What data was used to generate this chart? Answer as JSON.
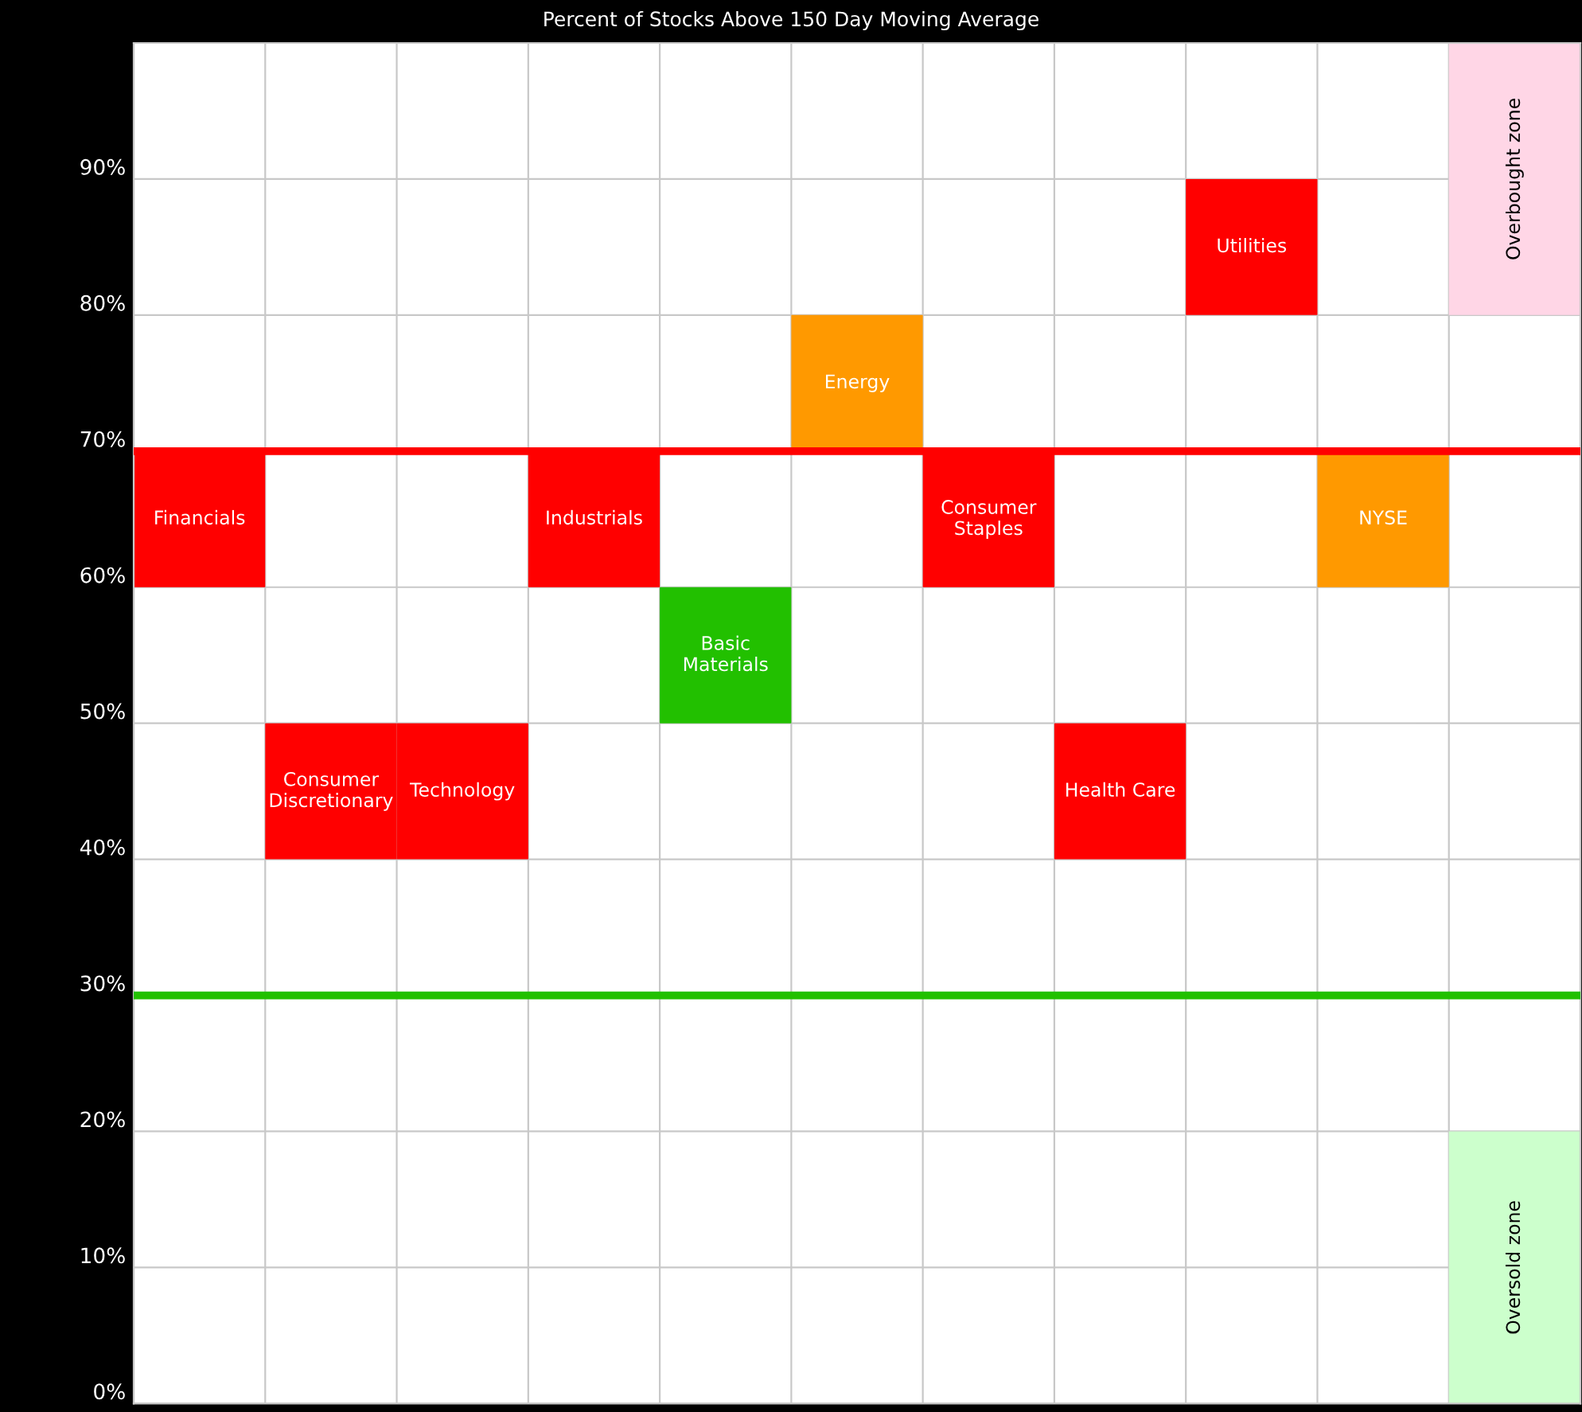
{
  "chart_data": {
    "type": "bar",
    "title": "Percent of Stocks Above 150 Day Moving Average",
    "categories": [
      null,
      null,
      null,
      null,
      null,
      null,
      null,
      null,
      null,
      null,
      null
    ],
    "series": [
      {
        "base": [
          60,
          40,
          40,
          60,
          50,
          70,
          60,
          40,
          80,
          60,
          null
        ],
        "values": [
          10,
          10,
          10,
          10,
          10,
          10,
          10,
          10,
          10,
          10,
          null
        ],
        "colors": [
          "#ff0000",
          "#ff0000",
          "#ff0000",
          "#ff0000",
          "#22c000",
          "#ff9900",
          "#ff0000",
          "#ff0000",
          "#ff0000",
          "#ff9900",
          null
        ],
        "value_labels": [
          "Financials",
          "Consumer\nDiscretionary",
          "Technology",
          "Industrials",
          "Basic\nMaterials",
          "Energy",
          "Consumer\nStaples",
          "Health Care",
          "Utilities",
          "NYSE",
          null
        ]
      },
      {
        "base": [
          null,
          null,
          null,
          null,
          null,
          null,
          null,
          null,
          null,
          null,
          80
        ],
        "values": [
          null,
          null,
          null,
          null,
          null,
          null,
          null,
          null,
          null,
          null,
          20
        ],
        "colors": [
          null,
          null,
          null,
          null,
          null,
          null,
          null,
          null,
          null,
          null,
          "#ffd6e6"
        ],
        "value_labels": [
          null,
          null,
          null,
          null,
          null,
          null,
          null,
          null,
          null,
          null,
          "Overbought zone"
        ]
      },
      {
        "base": [
          null,
          null,
          null,
          null,
          null,
          null,
          null,
          null,
          null,
          null,
          0
        ],
        "values": [
          null,
          null,
          null,
          null,
          null,
          null,
          null,
          null,
          null,
          null,
          20
        ],
        "colors": [
          null,
          null,
          null,
          null,
          null,
          null,
          null,
          null,
          null,
          null,
          "#ccffcc"
        ],
        "value_labels": [
          null,
          null,
          null,
          null,
          null,
          null,
          null,
          null,
          null,
          null,
          "Oversold zone"
        ]
      }
    ],
    "ylim": [
      0,
      100
    ],
    "yticks": [
      {
        "value": 0,
        "label": "0%"
      },
      {
        "value": 10,
        "label": "10%"
      },
      {
        "value": 20,
        "label": "20%"
      },
      {
        "value": 30,
        "label": "30%"
      },
      {
        "value": 40,
        "label": "40%"
      },
      {
        "value": 50,
        "label": "50%"
      },
      {
        "value": 60,
        "label": "60%"
      },
      {
        "value": 70,
        "label": "70%"
      },
      {
        "value": 80,
        "label": "80%"
      },
      {
        "value": 90,
        "label": "90%"
      }
    ],
    "ref_lines": [
      {
        "axis": "y",
        "value": 70,
        "color": "#ff0000"
      },
      {
        "axis": "y",
        "value": 30,
        "color": "#22c000"
      }
    ],
    "grid": true,
    "tick_labels": "y"
  }
}
